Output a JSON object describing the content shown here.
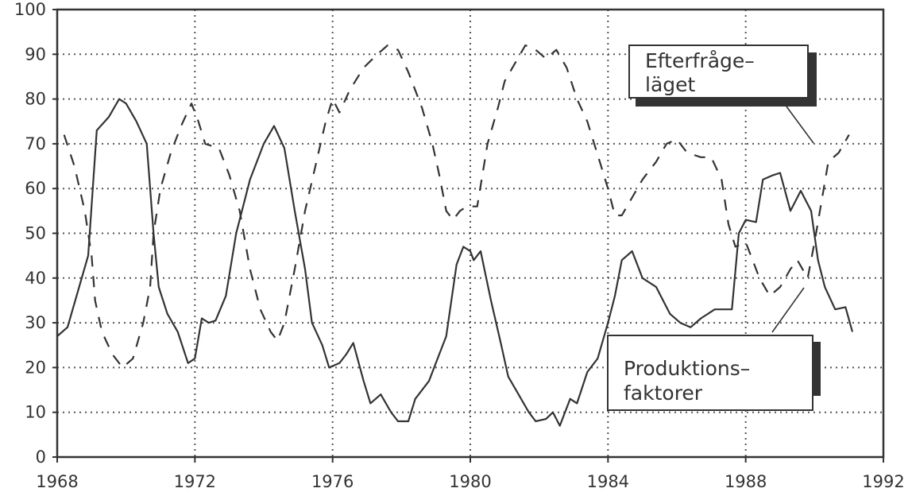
{
  "chart_data": {
    "type": "line",
    "title": "",
    "xlabel": "",
    "ylabel": "",
    "xlim": [
      1968,
      1992
    ],
    "ylim": [
      0,
      100
    ],
    "x_ticks": [
      "1968",
      "1972",
      "1976",
      "1980",
      "1984",
      "1988",
      "1992"
    ],
    "y_ticks": [
      "0",
      "10",
      "20",
      "30",
      "40",
      "50",
      "60",
      "70",
      "80",
      "90",
      "100"
    ],
    "grid": true,
    "colors": {
      "line": "#333333",
      "grid": "#555555"
    },
    "series": [
      {
        "name_lines": [
          "Produktions–",
          "faktorer"
        ],
        "style": "solid",
        "points": [
          [
            1968.0,
            27
          ],
          [
            1968.3,
            29
          ],
          [
            1968.6,
            37
          ],
          [
            1968.9,
            45
          ],
          [
            1969.15,
            73
          ],
          [
            1969.5,
            76
          ],
          [
            1969.8,
            80
          ],
          [
            1970.0,
            79
          ],
          [
            1970.3,
            75
          ],
          [
            1970.6,
            70
          ],
          [
            1970.8,
            50
          ],
          [
            1970.95,
            38
          ],
          [
            1971.2,
            32
          ],
          [
            1971.5,
            28
          ],
          [
            1971.8,
            21
          ],
          [
            1972.0,
            22
          ],
          [
            1972.2,
            31
          ],
          [
            1972.4,
            30
          ],
          [
            1972.6,
            30.5
          ],
          [
            1972.9,
            36
          ],
          [
            1973.2,
            50
          ],
          [
            1973.6,
            62
          ],
          [
            1974.0,
            70
          ],
          [
            1974.3,
            74
          ],
          [
            1974.6,
            69
          ],
          [
            1974.9,
            55
          ],
          [
            1975.2,
            42
          ],
          [
            1975.4,
            30
          ],
          [
            1975.7,
            25
          ],
          [
            1975.9,
            20
          ],
          [
            1976.2,
            21
          ],
          [
            1976.4,
            23
          ],
          [
            1976.6,
            25.5
          ],
          [
            1976.9,
            17
          ],
          [
            1977.1,
            12
          ],
          [
            1977.4,
            14
          ],
          [
            1977.7,
            10
          ],
          [
            1977.9,
            8
          ],
          [
            1978.2,
            8
          ],
          [
            1978.4,
            13
          ],
          [
            1978.8,
            17
          ],
          [
            1979.1,
            23
          ],
          [
            1979.3,
            27
          ],
          [
            1979.6,
            43
          ],
          [
            1979.8,
            47
          ],
          [
            1980.0,
            46
          ],
          [
            1980.1,
            44
          ],
          [
            1980.3,
            46
          ],
          [
            1980.6,
            35
          ],
          [
            1980.9,
            25
          ],
          [
            1981.1,
            18
          ],
          [
            1981.4,
            14
          ],
          [
            1981.7,
            10
          ],
          [
            1981.9,
            8
          ],
          [
            1982.2,
            8.5
          ],
          [
            1982.4,
            10
          ],
          [
            1982.6,
            7
          ],
          [
            1982.9,
            13
          ],
          [
            1983.1,
            12
          ],
          [
            1983.4,
            19
          ],
          [
            1983.7,
            22
          ],
          [
            1984.0,
            30
          ],
          [
            1984.2,
            36
          ],
          [
            1984.4,
            44
          ],
          [
            1984.7,
            46
          ],
          [
            1985.0,
            40
          ],
          [
            1985.4,
            38
          ],
          [
            1985.8,
            32
          ],
          [
            1986.1,
            30
          ],
          [
            1986.4,
            29
          ],
          [
            1986.7,
            31
          ],
          [
            1987.1,
            33
          ],
          [
            1987.6,
            33
          ],
          [
            1987.8,
            50
          ],
          [
            1988.0,
            53
          ],
          [
            1988.3,
            52.5
          ],
          [
            1988.5,
            62
          ],
          [
            1988.8,
            63
          ],
          [
            1989.0,
            63.5
          ],
          [
            1989.3,
            55
          ],
          [
            1989.6,
            59.5
          ],
          [
            1989.9,
            55
          ],
          [
            1990.1,
            44
          ],
          [
            1990.3,
            38
          ],
          [
            1990.6,
            33
          ],
          [
            1990.9,
            33.5
          ],
          [
            1991.1,
            28
          ]
        ]
      },
      {
        "name_lines": [
          "Efterfråge–",
          "läget"
        ],
        "style": "dashed",
        "points": [
          [
            1968.2,
            72
          ],
          [
            1968.5,
            65
          ],
          [
            1968.8,
            55
          ],
          [
            1969.0,
            45
          ],
          [
            1969.1,
            35
          ],
          [
            1969.3,
            28
          ],
          [
            1969.6,
            23
          ],
          [
            1969.9,
            20
          ],
          [
            1970.2,
            22
          ],
          [
            1970.5,
            30
          ],
          [
            1970.7,
            38
          ],
          [
            1970.8,
            50
          ],
          [
            1971.0,
            60
          ],
          [
            1971.3,
            68
          ],
          [
            1971.6,
            74
          ],
          [
            1971.9,
            79
          ],
          [
            1972.1,
            75
          ],
          [
            1972.3,
            70
          ],
          [
            1972.7,
            69
          ],
          [
            1973.0,
            63
          ],
          [
            1973.3,
            55
          ],
          [
            1973.6,
            42
          ],
          [
            1973.9,
            33
          ],
          [
            1974.2,
            28
          ],
          [
            1974.4,
            26
          ],
          [
            1974.6,
            30
          ],
          [
            1974.9,
            42
          ],
          [
            1975.2,
            55
          ],
          [
            1975.5,
            65
          ],
          [
            1975.8,
            75
          ],
          [
            1976.0,
            80
          ],
          [
            1976.2,
            77
          ],
          [
            1976.5,
            82
          ],
          [
            1976.9,
            87
          ],
          [
            1977.3,
            90
          ],
          [
            1977.6,
            92
          ],
          [
            1977.9,
            91
          ],
          [
            1978.2,
            86
          ],
          [
            1978.6,
            78
          ],
          [
            1978.9,
            70
          ],
          [
            1979.1,
            63
          ],
          [
            1979.3,
            55
          ],
          [
            1979.5,
            53
          ],
          [
            1979.7,
            55
          ],
          [
            1979.9,
            56
          ],
          [
            1980.2,
            56
          ],
          [
            1980.5,
            70
          ],
          [
            1980.8,
            78
          ],
          [
            1981.0,
            84
          ],
          [
            1981.3,
            88
          ],
          [
            1981.6,
            92
          ],
          [
            1981.9,
            91
          ],
          [
            1982.2,
            89
          ],
          [
            1982.5,
            91
          ],
          [
            1982.8,
            87
          ],
          [
            1983.1,
            80
          ],
          [
            1983.4,
            75
          ],
          [
            1983.6,
            70
          ],
          [
            1983.8,
            65
          ],
          [
            1984.0,
            60
          ],
          [
            1984.2,
            54
          ],
          [
            1984.4,
            54
          ],
          [
            1984.7,
            58
          ],
          [
            1985.0,
            62
          ],
          [
            1985.4,
            66
          ],
          [
            1985.7,
            70
          ],
          [
            1986.0,
            71
          ],
          [
            1986.3,
            68
          ],
          [
            1986.7,
            67
          ],
          [
            1987.0,
            67
          ],
          [
            1987.3,
            62
          ],
          [
            1987.5,
            52
          ],
          [
            1987.7,
            47
          ],
          [
            1988.0,
            48
          ],
          [
            1988.4,
            40
          ],
          [
            1988.7,
            36
          ],
          [
            1989.0,
            38
          ],
          [
            1989.3,
            42
          ],
          [
            1989.5,
            44
          ],
          [
            1989.8,
            40
          ],
          [
            1990.0,
            48
          ],
          [
            1990.2,
            57
          ],
          [
            1990.4,
            66
          ],
          [
            1990.7,
            68
          ],
          [
            1991.0,
            72
          ]
        ]
      }
    ]
  }
}
